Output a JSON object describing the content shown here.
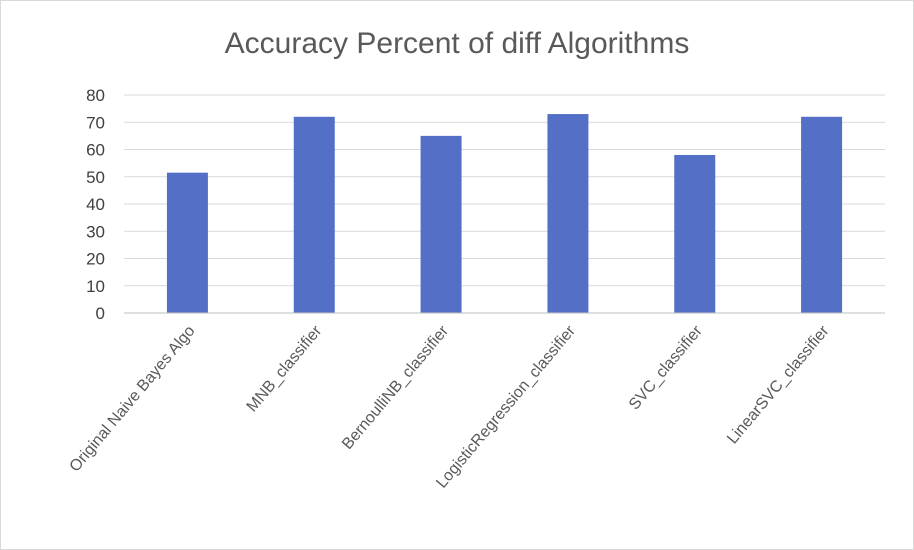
{
  "chart_data": {
    "type": "bar",
    "title": "Accuracy Percent of diff Algorithms",
    "categories": [
      "Original Naive Bayes Algo",
      "MNB_classifier",
      "BernoulliNB_classifier",
      "LogisticRegression_classifier",
      "SVC_classifier",
      "LinearSVC_classifier"
    ],
    "values": [
      51.5,
      72,
      65,
      73,
      58,
      72
    ],
    "ylim": [
      0,
      80
    ],
    "yticks": [
      0,
      10,
      20,
      30,
      40,
      50,
      60,
      70,
      80
    ],
    "grid": true,
    "legend": "none",
    "colors": {
      "bar": "#5470c6"
    }
  }
}
